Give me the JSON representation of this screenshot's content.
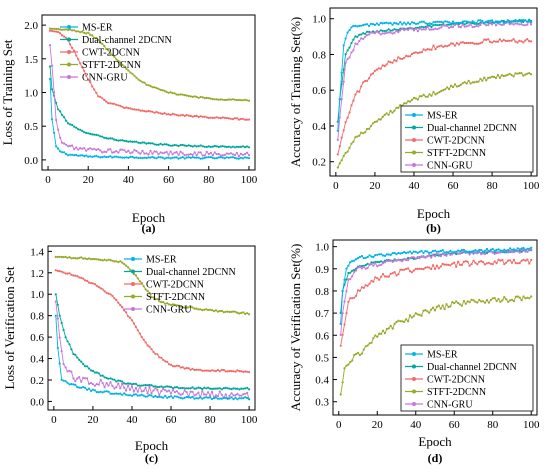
{
  "colors": {
    "MS-ER": "#00b4e8",
    "Dual-channel 2DCNN": "#00a89a",
    "CWT-2DCNN": "#f26b6b",
    "STFT-2DCNN": "#9aa82a",
    "CNN-GRU": "#c878d8"
  },
  "chart_data": [
    {
      "id": "a",
      "type": "line",
      "caption": "(a)",
      "xlabel": "Epoch",
      "ylabel": "Loss of Training Set",
      "xlim": [
        -3,
        103
      ],
      "ylim": [
        -0.15,
        2.15
      ],
      "xticks": [
        0,
        20,
        40,
        60,
        80,
        100
      ],
      "yticks": [
        0.0,
        0.5,
        1.0,
        1.5,
        2.0
      ],
      "ytick_labels": [
        "0.0",
        "0.5",
        "1.0",
        "1.5",
        "2.0"
      ],
      "legend_position": "top-left",
      "series": [
        {
          "name": "MS-ER",
          "points": [
            [
              0,
              1.8
            ],
            [
              2,
              0.6
            ],
            [
              4,
              0.2
            ],
            [
              6,
              0.13
            ],
            [
              10,
              0.08
            ],
            [
              20,
              0.05
            ],
            [
              40,
              0.04
            ],
            [
              60,
              0.03
            ],
            [
              80,
              0.03
            ],
            [
              100,
              0.03
            ]
          ],
          "noise": 0.012
        },
        {
          "name": "Dual-channel 2DCNN",
          "points": [
            [
              0,
              1.72
            ],
            [
              2,
              1.05
            ],
            [
              5,
              0.75
            ],
            [
              10,
              0.55
            ],
            [
              15,
              0.45
            ],
            [
              20,
              0.4
            ],
            [
              30,
              0.32
            ],
            [
              40,
              0.27
            ],
            [
              60,
              0.22
            ],
            [
              80,
              0.2
            ],
            [
              100,
              0.19
            ]
          ],
          "noise": 0.01
        },
        {
          "name": "CWT-2DCNN",
          "points": [
            [
              0,
              1.92
            ],
            [
              5,
              1.9
            ],
            [
              10,
              1.78
            ],
            [
              15,
              1.5
            ],
            [
              20,
              1.2
            ],
            [
              25,
              0.95
            ],
            [
              30,
              0.85
            ],
            [
              40,
              0.76
            ],
            [
              60,
              0.68
            ],
            [
              80,
              0.63
            ],
            [
              100,
              0.6
            ]
          ],
          "noise": 0.01
        },
        {
          "name": "STFT-2DCNN",
          "points": [
            [
              0,
              1.95
            ],
            [
              10,
              1.93
            ],
            [
              20,
              1.88
            ],
            [
              25,
              1.78
            ],
            [
              30,
              1.62
            ],
            [
              35,
              1.47
            ],
            [
              40,
              1.33
            ],
            [
              45,
              1.2
            ],
            [
              50,
              1.1
            ],
            [
              60,
              1.0
            ],
            [
              70,
              0.95
            ],
            [
              80,
              0.91
            ],
            [
              100,
              0.88
            ]
          ],
          "noise": 0.01
        },
        {
          "name": "CNN-GRU",
          "points": [
            [
              0,
              2.0
            ],
            [
              2,
              1.4
            ],
            [
              4,
              0.6
            ],
            [
              6,
              0.3
            ],
            [
              10,
              0.2
            ],
            [
              20,
              0.15
            ],
            [
              40,
              0.12
            ],
            [
              60,
              0.1
            ],
            [
              80,
              0.09
            ],
            [
              100,
              0.08
            ]
          ],
          "noise": 0.03
        }
      ]
    },
    {
      "id": "b",
      "type": "line",
      "caption": "(b)",
      "xlabel": "Epoch",
      "ylabel": "Accuracy of Training Set(%)",
      "xlim": [
        -3,
        103
      ],
      "ylim": [
        0.12,
        1.06
      ],
      "xticks": [
        0,
        20,
        40,
        60,
        80,
        100
      ],
      "yticks": [
        0.2,
        0.4,
        0.6,
        0.8,
        1.0
      ],
      "ytick_labels": [
        "0.2",
        "0.4",
        "0.6",
        "0.8",
        "1.0"
      ],
      "legend_position": "bottom-right",
      "series": [
        {
          "name": "MS-ER",
          "points": [
            [
              0,
              0.2
            ],
            [
              2,
              0.55
            ],
            [
              4,
              0.85
            ],
            [
              6,
              0.93
            ],
            [
              10,
              0.96
            ],
            [
              20,
              0.97
            ],
            [
              40,
              0.975
            ],
            [
              60,
              0.98
            ],
            [
              80,
              0.985
            ],
            [
              100,
              0.985
            ]
          ],
          "noise": 0.008
        },
        {
          "name": "Dual-channel 2DCNN",
          "points": [
            [
              0,
              0.3
            ],
            [
              2,
              0.55
            ],
            [
              5,
              0.8
            ],
            [
              10,
              0.9
            ],
            [
              15,
              0.92
            ],
            [
              20,
              0.93
            ],
            [
              40,
              0.95
            ],
            [
              60,
              0.97
            ],
            [
              80,
              0.98
            ],
            [
              100,
              0.99
            ]
          ],
          "noise": 0.006
        },
        {
          "name": "CWT-2DCNN",
          "points": [
            [
              0,
              0.2
            ],
            [
              5,
              0.42
            ],
            [
              10,
              0.57
            ],
            [
              15,
              0.65
            ],
            [
              20,
              0.7
            ],
            [
              30,
              0.77
            ],
            [
              40,
              0.81
            ],
            [
              50,
              0.84
            ],
            [
              60,
              0.86
            ],
            [
              80,
              0.875
            ],
            [
              100,
              0.88
            ]
          ],
          "noise": 0.012
        },
        {
          "name": "STFT-2DCNN",
          "points": [
            [
              0,
              0.15
            ],
            [
              5,
              0.25
            ],
            [
              10,
              0.33
            ],
            [
              20,
              0.42
            ],
            [
              30,
              0.49
            ],
            [
              40,
              0.55
            ],
            [
              50,
              0.58
            ],
            [
              60,
              0.62
            ],
            [
              70,
              0.65
            ],
            [
              80,
              0.67
            ],
            [
              90,
              0.685
            ],
            [
              100,
              0.695
            ]
          ],
          "noise": 0.01
        },
        {
          "name": "CNN-GRU",
          "points": [
            [
              0,
              0.2
            ],
            [
              2,
              0.45
            ],
            [
              5,
              0.75
            ],
            [
              10,
              0.85
            ],
            [
              15,
              0.9
            ],
            [
              20,
              0.92
            ],
            [
              40,
              0.94
            ],
            [
              60,
              0.96
            ],
            [
              80,
              0.97
            ],
            [
              100,
              0.975
            ]
          ],
          "noise": 0.012
        }
      ]
    },
    {
      "id": "c",
      "type": "line",
      "caption": "(c)",
      "xlabel": "Epoch",
      "ylabel": "Loss of Verification Set",
      "xlim": [
        -3,
        103
      ],
      "ylim": [
        -0.08,
        1.45
      ],
      "xticks": [
        0,
        20,
        40,
        60,
        80,
        100
      ],
      "yticks": [
        0.0,
        0.2,
        0.4,
        0.6,
        0.8,
        1.0,
        1.2,
        1.4
      ],
      "ytick_labels": [
        "0.0",
        "0.2",
        "0.4",
        "0.6",
        "0.8",
        "1.0",
        "1.2",
        "1.4"
      ],
      "legend_position": "top-right",
      "series": [
        {
          "name": "MS-ER",
          "points": [
            [
              0,
              1.1
            ],
            [
              2,
              0.5
            ],
            [
              4,
              0.2
            ],
            [
              10,
              0.15
            ],
            [
              20,
              0.1
            ],
            [
              40,
              0.06
            ],
            [
              60,
              0.04
            ],
            [
              80,
              0.03
            ],
            [
              100,
              0.03
            ]
          ],
          "noise": 0.01
        },
        {
          "name": "Dual-channel 2DCNN",
          "points": [
            [
              0,
              1.1
            ],
            [
              3,
              0.8
            ],
            [
              6,
              0.6
            ],
            [
              10,
              0.45
            ],
            [
              15,
              0.35
            ],
            [
              20,
              0.28
            ],
            [
              30,
              0.2
            ],
            [
              40,
              0.16
            ],
            [
              60,
              0.13
            ],
            [
              80,
              0.12
            ],
            [
              100,
              0.12
            ]
          ],
          "noise": 0.008
        },
        {
          "name": "CWT-2DCNN",
          "points": [
            [
              0,
              1.23
            ],
            [
              10,
              1.18
            ],
            [
              20,
              1.1
            ],
            [
              30,
              0.98
            ],
            [
              35,
              0.88
            ],
            [
              40,
              0.75
            ],
            [
              45,
              0.6
            ],
            [
              50,
              0.48
            ],
            [
              55,
              0.4
            ],
            [
              60,
              0.34
            ],
            [
              70,
              0.3
            ],
            [
              80,
              0.29
            ],
            [
              100,
              0.28
            ]
          ],
          "noise": 0.008
        },
        {
          "name": "STFT-2DCNN",
          "points": [
            [
              0,
              1.35
            ],
            [
              20,
              1.33
            ],
            [
              35,
              1.3
            ],
            [
              40,
              1.22
            ],
            [
              45,
              1.1
            ],
            [
              50,
              0.98
            ],
            [
              55,
              0.93
            ],
            [
              60,
              0.9
            ],
            [
              80,
              0.85
            ],
            [
              100,
              0.82
            ]
          ],
          "noise": 0.008
        },
        {
          "name": "CNN-GRU",
          "points": [
            [
              0,
              1.1
            ],
            [
              3,
              0.6
            ],
            [
              5,
              0.35
            ],
            [
              10,
              0.22
            ],
            [
              20,
              0.18
            ],
            [
              40,
              0.12
            ],
            [
              60,
              0.08
            ],
            [
              80,
              0.06
            ],
            [
              100,
              0.05
            ]
          ],
          "noise": 0.035
        }
      ]
    },
    {
      "id": "d",
      "type": "line",
      "caption": "(d)",
      "xlabel": "Epoch",
      "ylabel": "Accuracy of Verification Set(%)",
      "xlim": [
        -3,
        103
      ],
      "ylim": [
        0.24,
        1.03
      ],
      "xticks": [
        0,
        20,
        40,
        60,
        80,
        100
      ],
      "yticks": [
        0.3,
        0.4,
        0.5,
        0.6,
        0.7,
        0.8,
        0.9,
        1.0
      ],
      "ytick_labels": [
        "0.3",
        "0.4",
        "0.5",
        "0.6",
        "0.7",
        "0.8",
        "0.9",
        "1.0"
      ],
      "legend_position": "bottom-right",
      "series": [
        {
          "name": "MS-ER",
          "points": [
            [
              0,
              0.5
            ],
            [
              2,
              0.8
            ],
            [
              4,
              0.9
            ],
            [
              6,
              0.93
            ],
            [
              10,
              0.95
            ],
            [
              20,
              0.96
            ],
            [
              40,
              0.975
            ],
            [
              60,
              0.98
            ],
            [
              80,
              0.985
            ],
            [
              100,
              0.99
            ]
          ],
          "noise": 0.006
        },
        {
          "name": "Dual-channel 2DCNN",
          "points": [
            [
              0,
              0.6
            ],
            [
              2,
              0.8
            ],
            [
              5,
              0.88
            ],
            [
              10,
              0.91
            ],
            [
              20,
              0.93
            ],
            [
              40,
              0.95
            ],
            [
              60,
              0.97
            ],
            [
              80,
              0.975
            ],
            [
              100,
              0.98
            ]
          ],
          "noise": 0.005
        },
        {
          "name": "CWT-2DCNN",
          "points": [
            [
              0,
              0.5
            ],
            [
              5,
              0.75
            ],
            [
              10,
              0.8
            ],
            [
              15,
              0.83
            ],
            [
              20,
              0.86
            ],
            [
              30,
              0.88
            ],
            [
              40,
              0.9
            ],
            [
              60,
              0.92
            ],
            [
              80,
              0.93
            ],
            [
              100,
              0.93
            ]
          ],
          "noise": 0.012
        },
        {
          "name": "STFT-2DCNN",
          "points": [
            [
              0,
              0.27
            ],
            [
              3,
              0.45
            ],
            [
              8,
              0.5
            ],
            [
              15,
              0.55
            ],
            [
              20,
              0.6
            ],
            [
              30,
              0.65
            ],
            [
              40,
              0.69
            ],
            [
              50,
              0.72
            ],
            [
              60,
              0.74
            ],
            [
              70,
              0.75
            ],
            [
              80,
              0.76
            ],
            [
              100,
              0.765
            ]
          ],
          "noise": 0.012
        },
        {
          "name": "CNN-GRU",
          "points": [
            [
              0,
              0.5
            ],
            [
              2,
              0.7
            ],
            [
              5,
              0.85
            ],
            [
              10,
              0.9
            ],
            [
              20,
              0.92
            ],
            [
              40,
              0.95
            ],
            [
              60,
              0.97
            ],
            [
              80,
              0.975
            ],
            [
              100,
              0.98
            ]
          ],
          "noise": 0.008
        }
      ]
    }
  ]
}
